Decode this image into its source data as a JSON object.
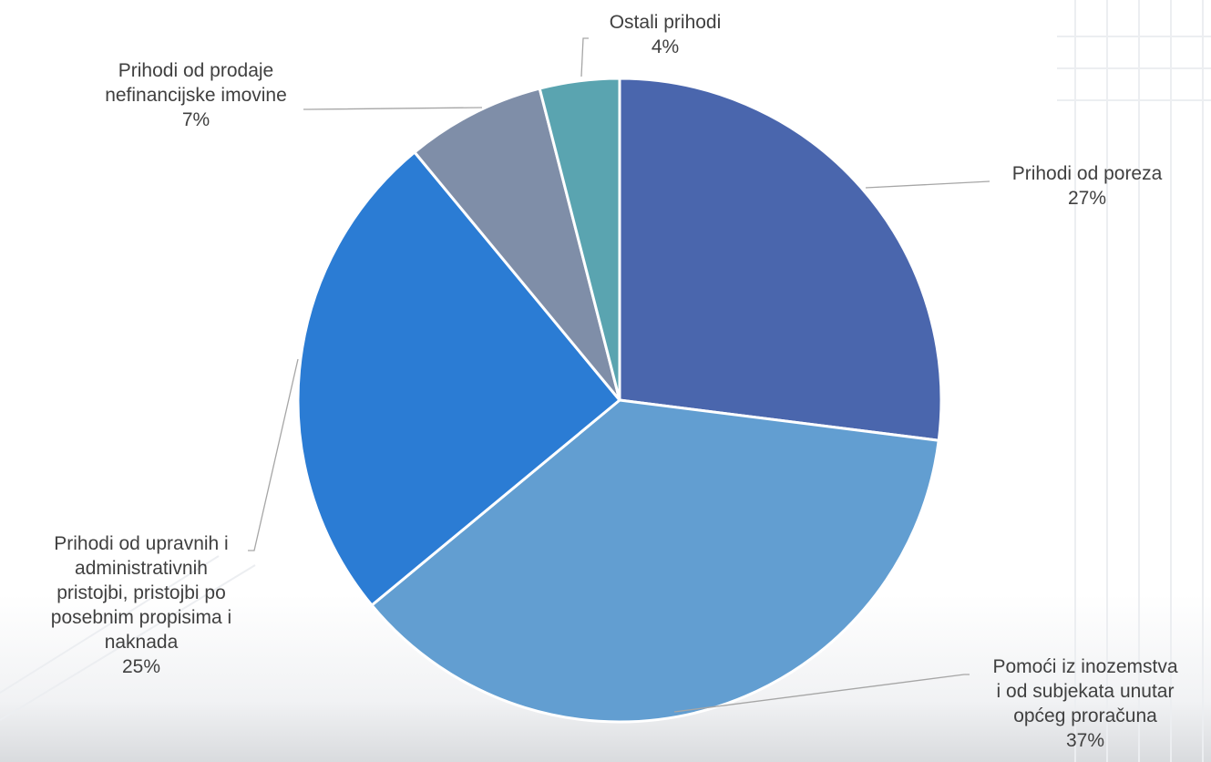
{
  "chart_data": {
    "type": "pie",
    "title": "",
    "categories": [
      "Prihodi od poreza",
      "Pomoći iz inozemstva i od subjekata unutar općeg proračuna",
      "Prihodi od upravnih i administrativnih pristojbi, pristojbi po posebnim propisima i naknada",
      "Prihodi od prodaje nefinancijske imovine",
      "Ostali prihodi"
    ],
    "values": [
      27,
      37,
      25,
      7,
      4
    ],
    "value_labels": [
      "27%",
      "37%",
      "25%",
      "7%",
      "4%"
    ],
    "colors": [
      "#4a66ad",
      "#629ed1",
      "#2b7cd4",
      "#7f8ea8",
      "#5aa4b0"
    ],
    "legend": "none"
  },
  "labels": {
    "slice0": {
      "line1": "Prihodi od poreza",
      "pct": "27%"
    },
    "slice1": {
      "line1": "Pomoći iz inozemstva",
      "line2": "i od subjekata unutar",
      "line3": "općeg proračuna",
      "pct": "37%"
    },
    "slice2": {
      "line1": "Prihodi od upravnih i",
      "line2": "administrativnih",
      "line3": "pristojbi, pristojbi po",
      "line4": "posebnim propisima i",
      "line5": "naknada",
      "pct": "25%"
    },
    "slice3": {
      "line1": "Prihodi od prodaje",
      "line2": "nefinancijske imovine",
      "pct": "7%"
    },
    "slice4": {
      "line1": "Ostali prihodi",
      "pct": "4%"
    }
  }
}
